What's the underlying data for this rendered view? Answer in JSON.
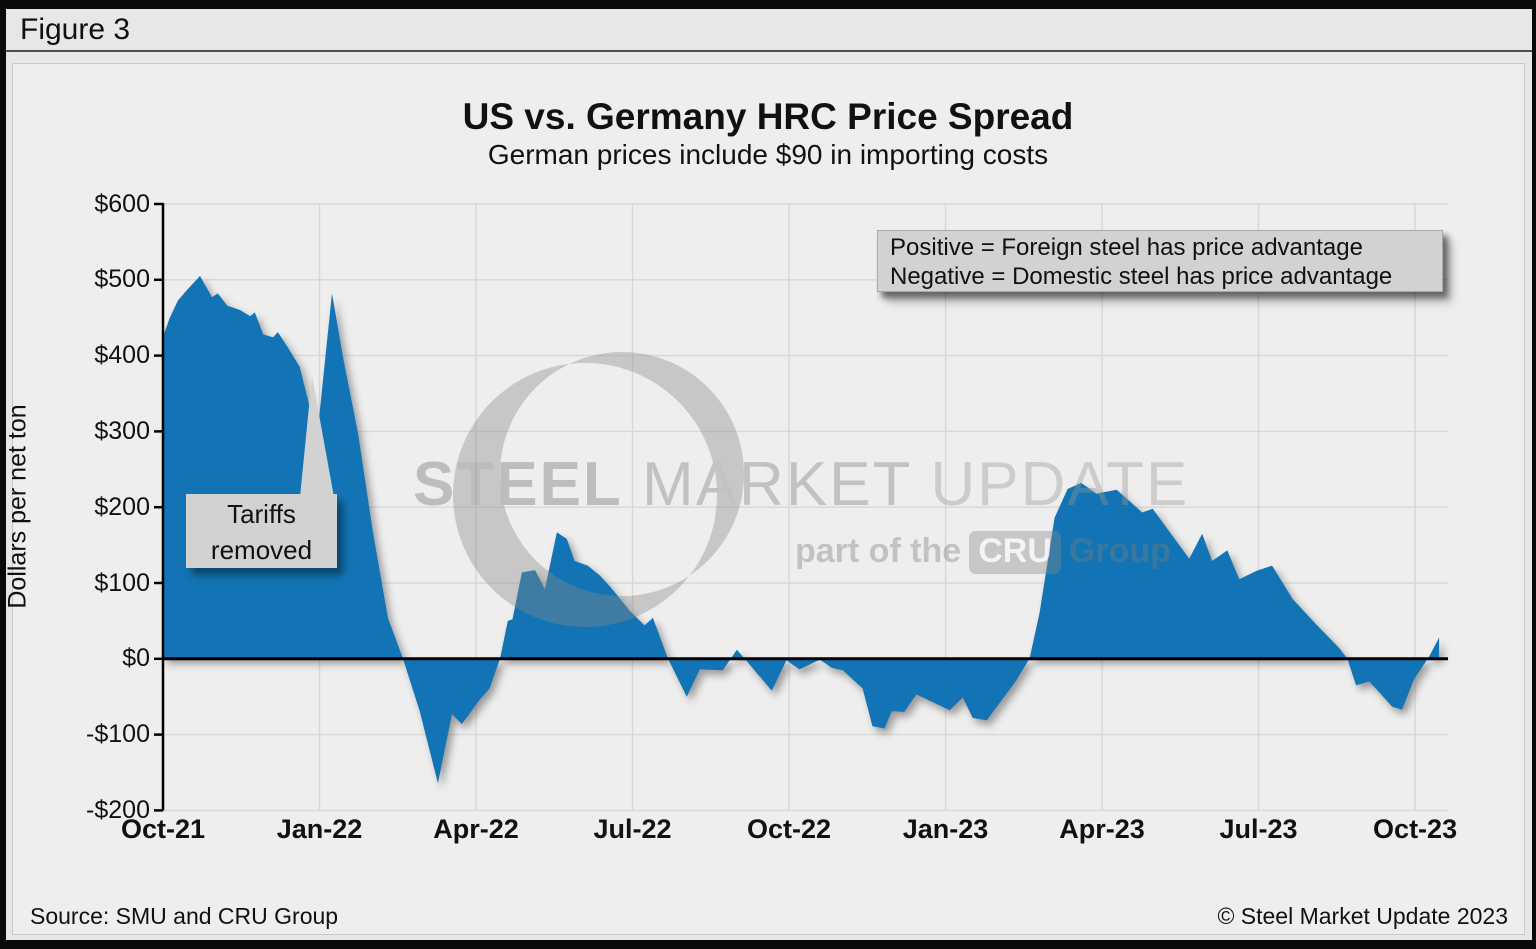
{
  "frame": {
    "figure_label": "Figure 3"
  },
  "header": {
    "title": "US vs. Germany HRC Price Spread",
    "subtitle": "German prices include $90 in importing costs"
  },
  "legend_note": {
    "line1": "Positive = Foreign steel has price advantage",
    "line2": "Negative = Domestic steel has price advantage"
  },
  "annotation": {
    "line1": "Tariffs",
    "line2": "removed"
  },
  "watermark": {
    "word1": "STEEL",
    "word2": "MARKET",
    "word3": "UPDATE",
    "tagline_prefix": "part of the",
    "tagline_badge": "CRU",
    "tagline_suffix": "Group"
  },
  "footer": {
    "source": "Source: SMU and CRU Group",
    "copyright": "© Steel Market Update 2023"
  },
  "colors": {
    "area_fill": "#1274b5",
    "gridline": "#d7d7d7",
    "axis": "#000000",
    "panel_bg": "#eeeeee",
    "note_box_bg": "#d2d2d2"
  },
  "chart_data": {
    "type": "area",
    "title": "US vs. Germany HRC Price Spread",
    "subtitle": "German prices include $90 in importing costs",
    "ylabel": "Dollars per net ton",
    "xlabel": "",
    "x_unit": "months since Oct-2021 (weekly observations)",
    "ylim": [
      -200,
      600
    ],
    "grid": true,
    "zero_line": true,
    "y_ticks": [
      {
        "value": 600,
        "label": "$600"
      },
      {
        "value": 500,
        "label": "$500"
      },
      {
        "value": 400,
        "label": "$400"
      },
      {
        "value": 300,
        "label": "$300"
      },
      {
        "value": 200,
        "label": "$200"
      },
      {
        "value": 100,
        "label": "$100"
      },
      {
        "value": 0,
        "label": "$0"
      },
      {
        "value": -100,
        "label": "-$100"
      },
      {
        "value": -200,
        "label": "-$200"
      }
    ],
    "x_ticks": [
      {
        "month": 0,
        "label": "Oct-21"
      },
      {
        "month": 3,
        "label": "Jan-22"
      },
      {
        "month": 6,
        "label": "Apr-22"
      },
      {
        "month": 9,
        "label": "Jul-22"
      },
      {
        "month": 12,
        "label": "Oct-22"
      },
      {
        "month": 15,
        "label": "Jan-23"
      },
      {
        "month": 18,
        "label": "Apr-23"
      },
      {
        "month": 21,
        "label": "Jul-23"
      },
      {
        "month": 24,
        "label": "Oct-23"
      }
    ],
    "annotations": [
      {
        "text": "Tariffs removed",
        "points_to_month": 2.85,
        "points_to_value": 290
      }
    ],
    "series": [
      {
        "name": "US minus Germany HRC price spread ($/net ton)",
        "color": "#1274b5",
        "points": [
          [
            0.0,
            425
          ],
          [
            0.13,
            450
          ],
          [
            0.29,
            473
          ],
          [
            0.48,
            488
          ],
          [
            0.71,
            505
          ],
          [
            0.94,
            477
          ],
          [
            1.05,
            482
          ],
          [
            1.23,
            466
          ],
          [
            1.48,
            460
          ],
          [
            1.67,
            452
          ],
          [
            1.76,
            457
          ],
          [
            1.92,
            428
          ],
          [
            2.11,
            424
          ],
          [
            2.2,
            431
          ],
          [
            2.39,
            411
          ],
          [
            2.62,
            385
          ],
          [
            2.78,
            341
          ],
          [
            2.95,
            290
          ],
          [
            3.24,
            482
          ],
          [
            3.45,
            398
          ],
          [
            3.74,
            297
          ],
          [
            4.02,
            169
          ],
          [
            4.31,
            54
          ],
          [
            4.6,
            0
          ],
          [
            4.92,
            -69
          ],
          [
            5.27,
            -164
          ],
          [
            5.54,
            -73
          ],
          [
            5.73,
            -86
          ],
          [
            6.07,
            -54
          ],
          [
            6.26,
            -39
          ],
          [
            6.46,
            0
          ],
          [
            6.61,
            50
          ],
          [
            6.7,
            52
          ],
          [
            6.88,
            114
          ],
          [
            7.13,
            117
          ],
          [
            7.32,
            92
          ],
          [
            7.55,
            167
          ],
          [
            7.74,
            158
          ],
          [
            7.89,
            129
          ],
          [
            8.14,
            123
          ],
          [
            8.37,
            110
          ],
          [
            8.56,
            96
          ],
          [
            8.95,
            63
          ],
          [
            9.23,
            44
          ],
          [
            9.39,
            54
          ],
          [
            9.68,
            0
          ],
          [
            10.04,
            -50
          ],
          [
            10.29,
            -14
          ],
          [
            10.73,
            -15
          ],
          [
            11.0,
            12
          ],
          [
            11.67,
            -42
          ],
          [
            11.95,
            -2
          ],
          [
            12.2,
            -14
          ],
          [
            12.59,
            -1
          ],
          [
            12.82,
            -12
          ],
          [
            13.03,
            -15
          ],
          [
            13.41,
            -39
          ],
          [
            13.6,
            -89
          ],
          [
            13.83,
            -92
          ],
          [
            13.97,
            -69
          ],
          [
            14.21,
            -70
          ],
          [
            14.44,
            -47
          ],
          [
            14.75,
            -57
          ],
          [
            15.08,
            -68
          ],
          [
            15.33,
            -51
          ],
          [
            15.52,
            -78
          ],
          [
            15.79,
            -81
          ],
          [
            16.07,
            -55
          ],
          [
            16.32,
            -32
          ],
          [
            16.61,
            0
          ],
          [
            16.8,
            60
          ],
          [
            17.09,
            186
          ],
          [
            17.34,
            224
          ],
          [
            17.6,
            232
          ],
          [
            17.89,
            218
          ],
          [
            18.28,
            223
          ],
          [
            18.77,
            193
          ],
          [
            18.97,
            198
          ],
          [
            19.67,
            132
          ],
          [
            19.92,
            165
          ],
          [
            20.11,
            129
          ],
          [
            20.4,
            143
          ],
          [
            20.63,
            105
          ],
          [
            20.96,
            116
          ],
          [
            21.26,
            123
          ],
          [
            21.65,
            79
          ],
          [
            22.11,
            45
          ],
          [
            22.55,
            14
          ],
          [
            22.7,
            0
          ],
          [
            22.87,
            -35
          ],
          [
            23.12,
            -30
          ],
          [
            23.35,
            -47
          ],
          [
            23.56,
            -63
          ],
          [
            23.75,
            -67
          ],
          [
            23.98,
            -27
          ],
          [
            24.27,
            3
          ],
          [
            24.46,
            28
          ]
        ]
      }
    ]
  }
}
